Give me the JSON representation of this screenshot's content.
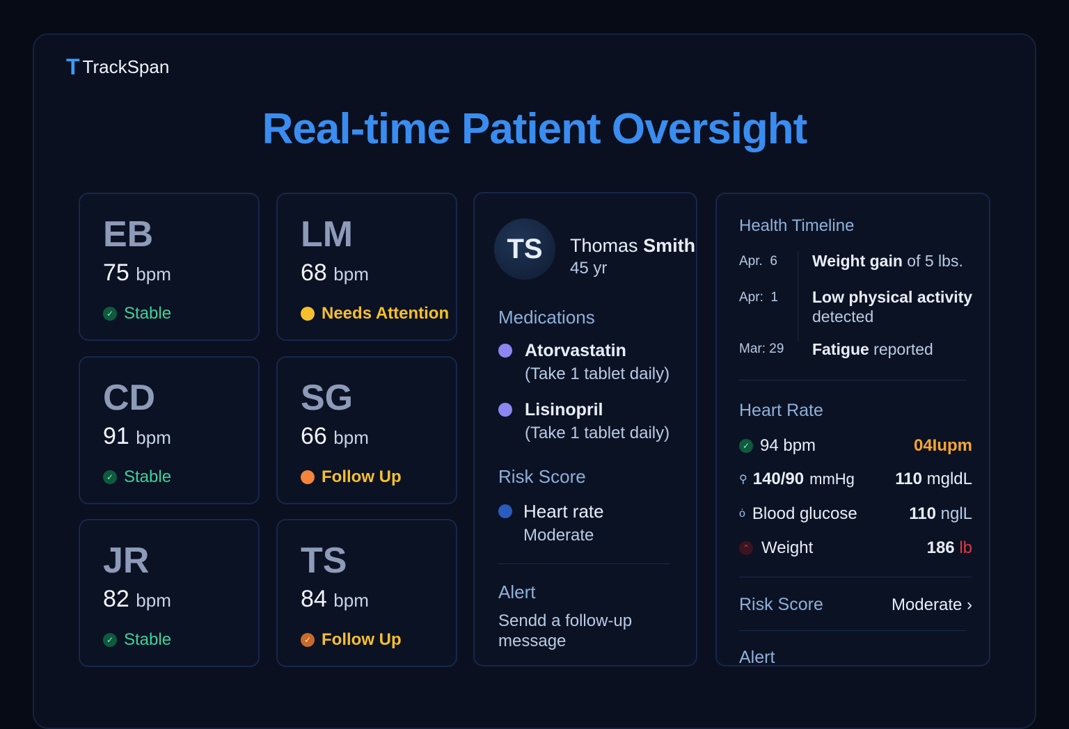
{
  "app": {
    "name": "TrackSpan",
    "logo_letter": "T"
  },
  "page": {
    "title": "Real-time Patient Oversight"
  },
  "patients": [
    {
      "initials": "EB",
      "bpm": "75",
      "unit": "bpm",
      "status": "Stable",
      "status_color": "#3dd39a",
      "icon": "check-icon"
    },
    {
      "initials": "LM",
      "bpm": "68",
      "unit": "bpm",
      "status": "Needs Attention",
      "status_color": "#f6c02c",
      "icon": "yellow-dot-icon"
    },
    {
      "initials": "CD",
      "bpm": "91",
      "unit": "bpm",
      "status": "Stable",
      "status_color": "#3dd39a",
      "icon": "check-icon"
    },
    {
      "initials": "SG",
      "bpm": "66",
      "unit": "bpm",
      "status": "Follow Up",
      "status_color": "#f6c02c",
      "icon": "orange-dot-icon"
    },
    {
      "initials": "JR",
      "bpm": "82",
      "unit": "bpm",
      "status": "Stable",
      "status_color": "#3dd39a",
      "icon": "check-icon"
    },
    {
      "initials": "TS",
      "bpm": "84",
      "unit": "bpm",
      "status": "Follow Up",
      "status_color": "#f6c02c",
      "icon": "orange-check-icon"
    }
  ],
  "detail": {
    "avatar": "TS",
    "name_first": "Thomas",
    "name_last": "Smith",
    "age": "45 yr",
    "medications_label": "Medications",
    "medications": [
      {
        "name": "Atorvastatin",
        "dose": "(Take 1 tablet daily)"
      },
      {
        "name": "Lisinopril",
        "dose": "(Take 1 tablet daily)"
      }
    ],
    "risk_label": "Risk Score",
    "risk_item": "Heart rate",
    "risk_level": "Moderate",
    "alert_label": "Alert",
    "alert_text": "Sendd a follow-up message"
  },
  "timeline": {
    "title": "Health Timeline",
    "events": [
      {
        "date": "Apr.  6",
        "bold": "Weight gain",
        "rest": " of 5 lbs."
      },
      {
        "date": "Apr:  1",
        "bold": "Low physical activity",
        "rest": "detected"
      },
      {
        "date": "Mar: 29",
        "bold": "Fatigue",
        "rest": " reported"
      }
    ],
    "heart_rate_label": "Heart Rate",
    "vitals": [
      {
        "left_value": "94 bpm",
        "right_value": "04Iupm"
      },
      {
        "left_value": "140/90",
        "left_unit": "mmHg",
        "right_value": "110",
        "right_unit": "mgldL"
      },
      {
        "left_value": "Blood glucose",
        "right_value": "110",
        "right_unit": "nglL"
      },
      {
        "left_value": "Weight",
        "right_value": "186",
        "right_unit": "lb"
      }
    ],
    "risk_label": "Risk Score",
    "risk_value": "Moderate",
    "alert_label": "Alert"
  },
  "colors": {
    "accent": "#3a8df0",
    "stable": "#3dd39a",
    "warning": "#f6c02c",
    "danger": "#e0393e"
  }
}
